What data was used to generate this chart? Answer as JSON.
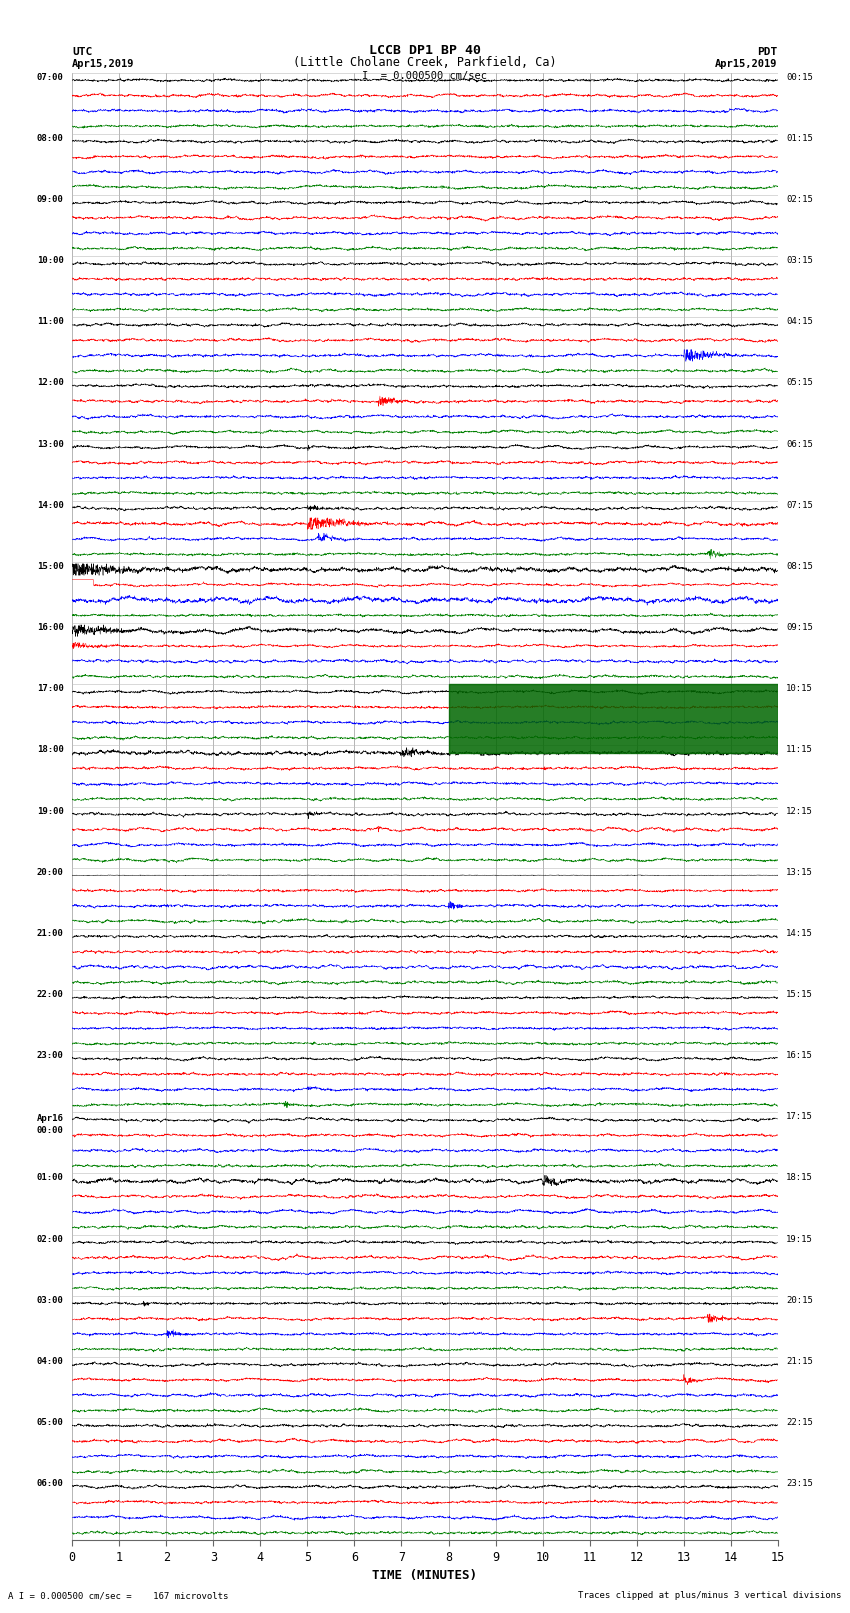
{
  "title_line1": "LCCB DP1 BP 40",
  "title_line2": "(Little Cholane Creek, Parkfield, Ca)",
  "scale_label": "I  = 0.000500 cm/sec",
  "xlabel": "TIME (MINUTES)",
  "footer_left": "A I = 0.000500 cm/sec =    167 microvolts",
  "footer_right": "Traces clipped at plus/minus 3 vertical divisions",
  "utc_label": "UTC",
  "utc_date": "Apr15,2019",
  "pdt_label": "PDT",
  "pdt_date": "Apr15,2019",
  "trace_colors": [
    "black",
    "red",
    "blue",
    "green"
  ],
  "xlim": [
    0,
    15
  ],
  "xticks": [
    0,
    1,
    2,
    3,
    4,
    5,
    6,
    7,
    8,
    9,
    10,
    11,
    12,
    13,
    14,
    15
  ],
  "fig_width": 8.5,
  "fig_height": 16.13,
  "dpi": 100,
  "group_labels_left": [
    "07:00",
    "08:00",
    "09:00",
    "10:00",
    "11:00",
    "12:00",
    "13:00",
    "14:00",
    "15:00",
    "16:00",
    "17:00",
    "18:00",
    "19:00",
    "20:00",
    "21:00",
    "22:00",
    "23:00",
    "Apr16\n00:00",
    "01:00",
    "02:00",
    "03:00",
    "04:00",
    "05:00",
    "06:00"
  ],
  "group_labels_right": [
    "00:15",
    "01:15",
    "02:15",
    "03:15",
    "04:15",
    "05:15",
    "06:15",
    "07:15",
    "08:15",
    "09:15",
    "10:15",
    "11:15",
    "12:15",
    "13:15",
    "14:15",
    "15:15",
    "16:15",
    "17:15",
    "18:15",
    "19:15",
    "20:15",
    "21:15",
    "22:15",
    "23:15"
  ],
  "num_groups": 24,
  "traces_per_group": 4
}
